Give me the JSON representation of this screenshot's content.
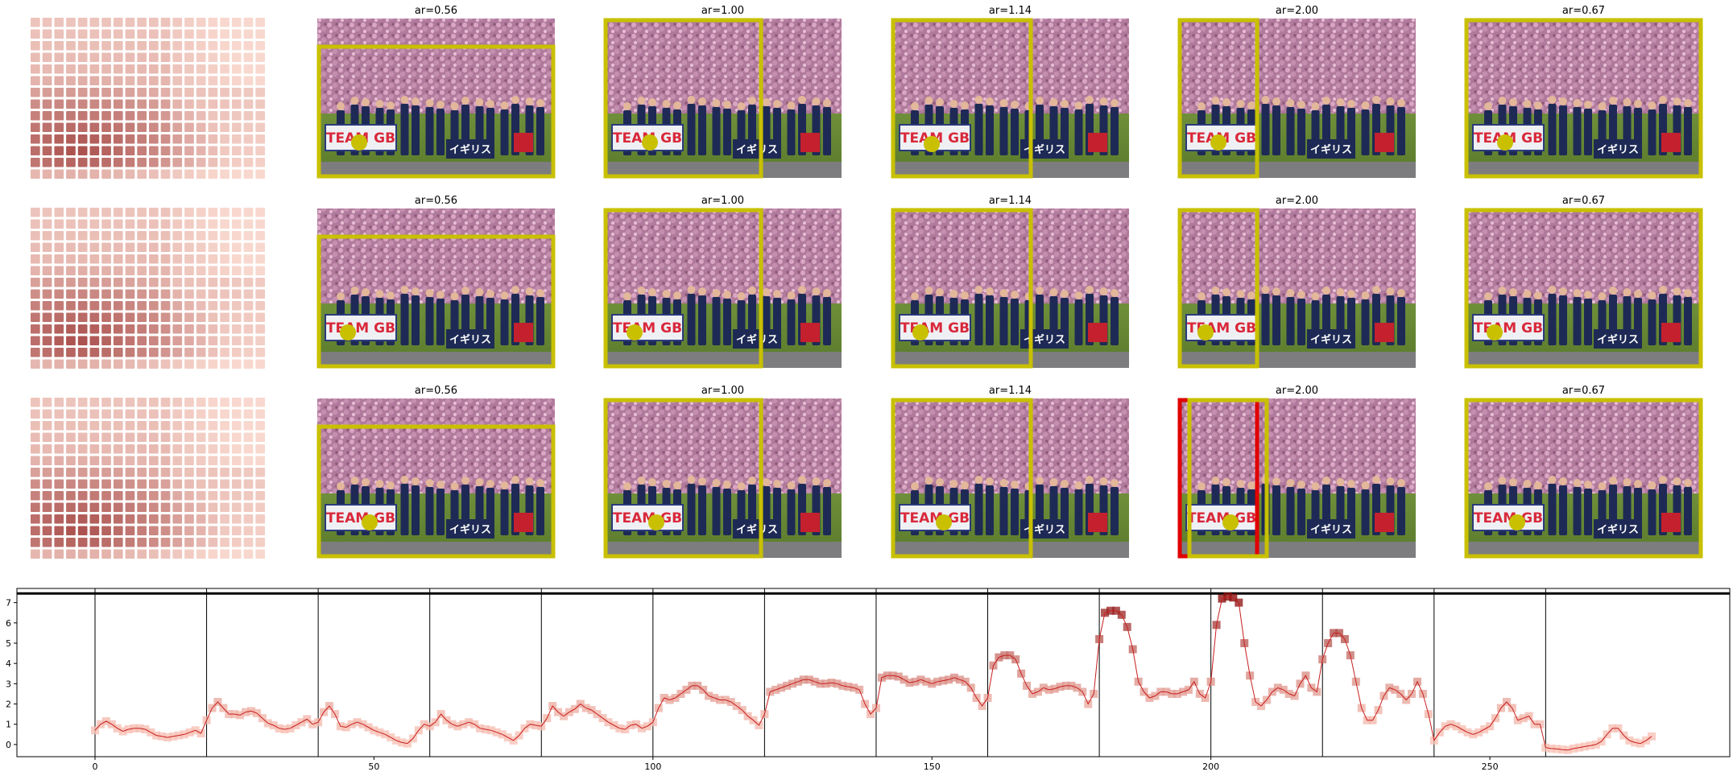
{
  "figure": {
    "rows": [
      {
        "crops": [
          {
            "title": "ar=0.56",
            "box": "yellow",
            "dot": "yellow"
          },
          {
            "title": "ar=1.00",
            "box": "yellow",
            "dot": "yellow"
          },
          {
            "title": "ar=1.14",
            "box": "yellow",
            "dot": "yellow"
          },
          {
            "title": "ar=2.00",
            "box": "yellow",
            "dot": "yellow"
          },
          {
            "title": "ar=0.67",
            "box": "yellow",
            "dot": "yellow"
          }
        ]
      },
      {
        "crops": [
          {
            "title": "ar=0.56",
            "box": "yellow",
            "dot": "yellow"
          },
          {
            "title": "ar=1.00",
            "box": "yellow",
            "dot": "yellow"
          },
          {
            "title": "ar=1.14",
            "box": "yellow",
            "dot": "yellow"
          },
          {
            "title": "ar=2.00",
            "box": "yellow+red",
            "dot": "yellow"
          },
          {
            "title": "ar=0.67",
            "box": "yellow",
            "dot": "yellow"
          }
        ]
      },
      {
        "crops": [
          {
            "title": "ar=0.56",
            "box": "yellow",
            "dot": "yellow"
          },
          {
            "title": "ar=1.00",
            "box": "yellow",
            "dot": "yellow"
          },
          {
            "title": "ar=1.14",
            "box": "yellow",
            "dot": "yellow"
          },
          {
            "title": "ar=2.00",
            "box": "yellow+red",
            "dot": "yellow"
          },
          {
            "title": "ar=0.67",
            "box": "yellow",
            "dot": "yellow"
          }
        ]
      }
    ],
    "photo_text": {
      "banner_left": "TEAM GB",
      "banner_right": "イギリス"
    },
    "colors": {
      "box_yellow": "#c8c000",
      "box_red": "#e00000",
      "dot_yellow": "#c8c000",
      "heat_low": "#fde0d6",
      "heat_high": "#8b1a1a",
      "line": "#e0483a",
      "marker": "#f08070",
      "hline": "#000000",
      "vline": "#000000"
    }
  },
  "chart_data": {
    "type": "line",
    "x_ticks": [
      0,
      50,
      100,
      150,
      200,
      250
    ],
    "y_ticks": [
      0,
      1,
      2,
      3,
      4,
      5,
      6,
      7
    ],
    "xlim": [
      -14,
      293
    ],
    "ylim": [
      -0.6,
      7.7
    ],
    "hline_y": 7.45,
    "vlines_x": [
      0,
      20,
      40,
      60,
      80,
      100,
      120,
      140,
      160,
      180,
      200,
      220,
      240,
      260
    ],
    "series": [
      {
        "x": [
          0,
          1,
          2,
          3,
          4,
          5,
          6,
          7,
          8,
          9,
          10,
          11,
          12,
          13,
          14,
          15,
          16,
          17,
          18,
          19,
          20,
          21,
          22,
          23,
          24,
          25,
          26,
          27,
          28,
          29,
          30,
          31,
          32,
          33,
          34,
          35,
          36,
          37,
          38,
          39,
          40,
          41,
          42,
          43,
          44,
          45,
          46,
          47,
          48,
          49,
          50,
          51,
          52,
          53,
          54,
          55,
          56,
          57,
          58,
          59,
          60,
          61,
          62,
          63,
          64,
          65,
          66,
          67,
          68,
          69,
          70,
          71,
          72,
          73,
          74,
          75,
          76,
          77,
          78,
          79,
          80,
          81,
          82,
          83,
          84,
          85,
          86,
          87,
          88,
          89,
          90,
          91,
          92,
          93,
          94,
          95,
          96,
          97,
          98,
          99,
          100,
          101,
          102,
          103,
          104,
          105,
          106,
          107,
          108,
          109,
          110,
          111,
          112,
          113,
          114,
          115,
          116,
          117,
          118,
          119,
          120,
          121,
          122,
          123,
          124,
          125,
          126,
          127,
          128,
          129,
          130,
          131,
          132,
          133,
          134,
          135,
          136,
          137,
          138,
          139,
          140,
          141,
          142,
          143,
          144,
          145,
          146,
          147,
          148,
          149,
          150,
          151,
          152,
          153,
          154,
          155,
          156,
          157,
          158,
          159,
          160,
          161,
          162,
          163,
          164,
          165,
          166,
          167,
          168,
          169,
          170,
          171,
          172,
          173,
          174,
          175,
          176,
          177,
          178,
          179,
          180,
          181,
          182,
          183,
          184,
          185,
          186,
          187,
          188,
          189,
          190,
          191,
          192,
          193,
          194,
          195,
          196,
          197,
          198,
          199,
          200,
          201,
          202,
          203,
          204,
          205,
          206,
          207,
          208,
          209,
          210,
          211,
          212,
          213,
          214,
          215,
          216,
          217,
          218,
          219,
          220,
          221,
          222,
          223,
          224,
          225,
          226,
          227,
          228,
          229,
          230,
          231,
          232,
          233,
          234,
          235,
          236,
          237,
          238,
          239,
          240,
          241,
          242,
          243,
          244,
          245,
          246,
          247,
          248,
          249,
          250,
          251,
          252,
          253,
          254,
          255,
          256,
          257,
          258,
          259,
          260,
          261,
          262,
          263,
          264,
          265,
          266,
          267,
          268,
          269,
          270,
          271,
          272,
          273,
          274,
          275,
          276,
          277,
          278,
          279
        ],
        "values": [
          0.7,
          1.0,
          1.15,
          1.0,
          0.8,
          0.65,
          0.75,
          0.8,
          0.8,
          0.75,
          0.6,
          0.45,
          0.4,
          0.35,
          0.4,
          0.45,
          0.5,
          0.6,
          0.7,
          0.55,
          1.2,
          1.8,
          2.1,
          1.8,
          1.5,
          1.5,
          1.45,
          1.6,
          1.65,
          1.55,
          1.3,
          1.05,
          0.95,
          0.8,
          0.75,
          0.8,
          0.95,
          1.1,
          1.25,
          1.0,
          1.1,
          1.6,
          1.9,
          1.5,
          0.9,
          0.85,
          1.0,
          1.1,
          1.0,
          0.85,
          0.7,
          0.6,
          0.5,
          0.35,
          0.2,
          0.1,
          0.05,
          0.3,
          0.7,
          1.0,
          0.9,
          1.1,
          1.5,
          1.2,
          1.0,
          0.9,
          1.0,
          1.1,
          1.0,
          0.8,
          0.75,
          0.7,
          0.6,
          0.5,
          0.35,
          0.2,
          0.45,
          0.8,
          1.0,
          0.95,
          0.9,
          1.3,
          1.9,
          1.6,
          1.4,
          1.6,
          1.75,
          2.0,
          1.8,
          1.7,
          1.5,
          1.3,
          1.1,
          0.95,
          0.8,
          0.75,
          0.95,
          1.0,
          0.8,
          0.9,
          1.1,
          1.8,
          2.3,
          2.2,
          2.3,
          2.5,
          2.7,
          2.9,
          2.9,
          2.7,
          2.4,
          2.3,
          2.2,
          2.2,
          2.1,
          1.9,
          1.7,
          1.4,
          1.2,
          0.95,
          1.5,
          2.6,
          2.7,
          2.8,
          2.9,
          3.0,
          3.1,
          3.2,
          3.2,
          3.1,
          3.0,
          3.0,
          3.05,
          3.0,
          2.9,
          2.85,
          2.8,
          2.7,
          2.0,
          1.5,
          1.8,
          3.3,
          3.4,
          3.4,
          3.35,
          3.2,
          3.05,
          3.1,
          3.2,
          3.1,
          3.0,
          3.1,
          3.15,
          3.2,
          3.3,
          3.2,
          3.1,
          2.8,
          2.3,
          1.9,
          2.3,
          3.9,
          4.3,
          4.4,
          4.4,
          4.2,
          3.5,
          2.9,
          2.5,
          2.6,
          2.8,
          2.7,
          2.75,
          2.85,
          2.9,
          2.9,
          2.8,
          2.6,
          2.0,
          2.5,
          5.2,
          6.5,
          6.6,
          6.6,
          6.4,
          5.8,
          4.7,
          3.1,
          2.6,
          2.3,
          2.4,
          2.6,
          2.6,
          2.5,
          2.5,
          2.6,
          2.7,
          3.1,
          2.5,
          2.3,
          3.1,
          5.9,
          7.2,
          7.3,
          7.25,
          7.0,
          5.0,
          3.4,
          2.1,
          1.9,
          2.2,
          2.6,
          2.8,
          2.7,
          2.5,
          2.4,
          3.0,
          3.4,
          2.8,
          2.6,
          4.2,
          5.0,
          5.5,
          5.5,
          5.2,
          4.4,
          3.1,
          1.8,
          1.2,
          1.2,
          1.7,
          2.4,
          2.8,
          2.7,
          2.5,
          2.2,
          2.5,
          3.1,
          2.5,
          1.5,
          0.2,
          0.6,
          0.9,
          1.0,
          0.9,
          0.75,
          0.6,
          0.5,
          0.6,
          0.75,
          0.9,
          1.3,
          1.8,
          2.1,
          1.8,
          1.2,
          1.3,
          1.4,
          1.0,
          1.0,
          -0.15,
          -0.2,
          -0.22,
          -0.25,
          -0.27,
          -0.2,
          -0.15,
          -0.1,
          -0.05,
          0.0,
          0.15,
          0.5,
          0.8,
          0.8,
          0.45,
          0.2,
          0.1,
          0.05,
          0.2,
          0.4
        ]
      }
    ]
  }
}
